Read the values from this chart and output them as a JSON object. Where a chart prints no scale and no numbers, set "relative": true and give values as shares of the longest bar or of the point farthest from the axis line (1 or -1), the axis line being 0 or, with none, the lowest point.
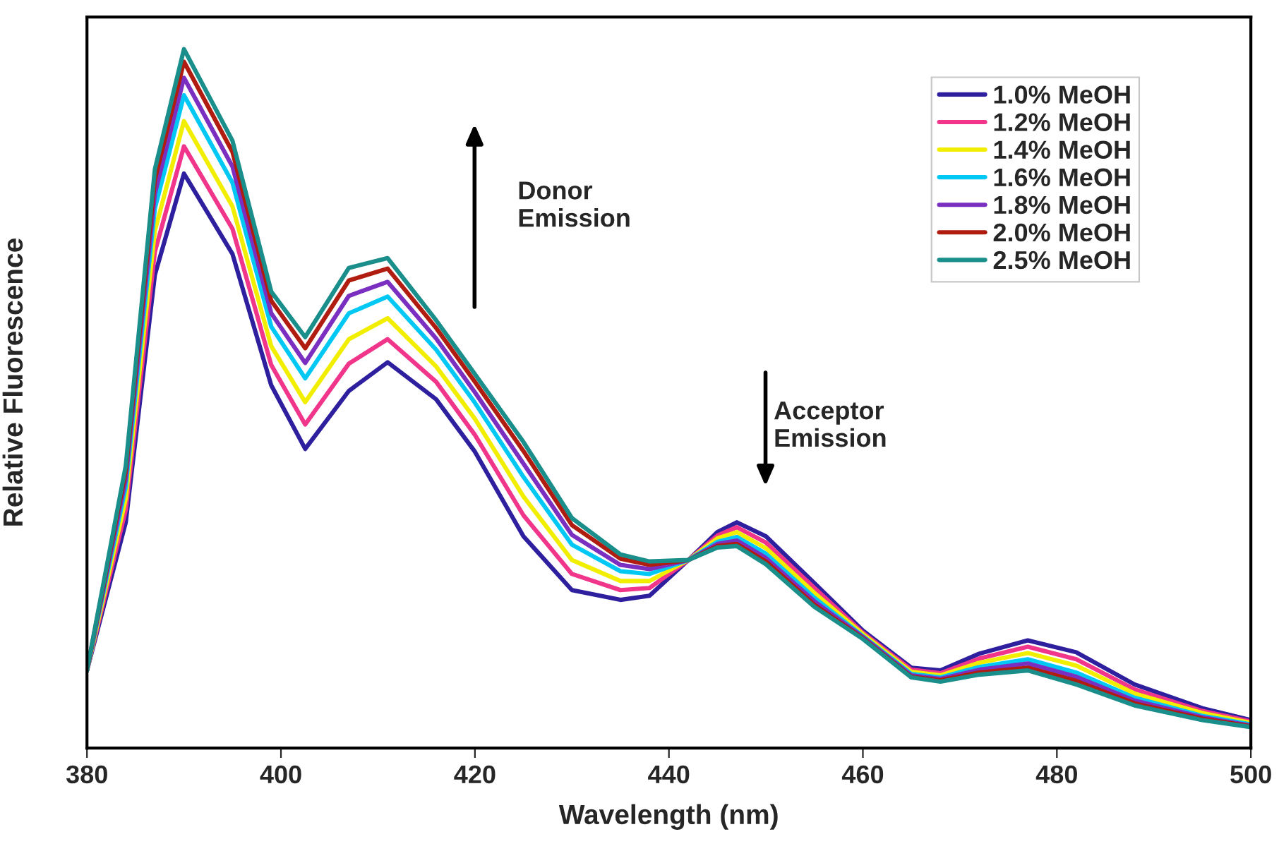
{
  "chart_data": {
    "type": "line",
    "relative": true,
    "xlabel": "Wavelength (nm)",
    "ylabel": "Relative Fluorescence",
    "x": [
      380,
      384,
      387,
      390,
      395,
      399,
      402.5,
      407,
      411,
      416,
      420,
      425,
      430,
      435,
      438,
      442,
      445,
      447,
      450,
      455,
      460,
      465,
      468,
      472,
      477,
      482,
      488,
      495,
      500
    ],
    "xlim": [
      380,
      500
    ],
    "xticks": [
      380,
      400,
      420,
      440,
      460,
      480,
      500
    ],
    "tick_labels": "x",
    "grid": false,
    "legend": "top right",
    "marker": "none",
    "line_style": "solid",
    "annotations": [
      "Donor\nEmission",
      "Acceptor\nEmission"
    ],
    "series": [
      {
        "name": "1.0% MeOH",
        "color": "#2e1f9e",
        "values": [
          0.111,
          0.323,
          0.677,
          0.822,
          0.707,
          0.519,
          0.428,
          0.511,
          0.552,
          0.499,
          0.424,
          0.303,
          0.226,
          0.212,
          0.218,
          0.269,
          0.309,
          0.323,
          0.303,
          0.236,
          0.168,
          0.115,
          0.111,
          0.135,
          0.154,
          0.137,
          0.091,
          0.057,
          0.04
        ]
      },
      {
        "name": "1.2% MeOH",
        "color": "#f0358a",
        "values": [
          0.111,
          0.341,
          0.71,
          0.861,
          0.743,
          0.548,
          0.463,
          0.55,
          0.585,
          0.524,
          0.448,
          0.333,
          0.249,
          0.226,
          0.229,
          0.269,
          0.304,
          0.316,
          0.294,
          0.229,
          0.165,
          0.112,
          0.107,
          0.128,
          0.145,
          0.127,
          0.084,
          0.053,
          0.038
        ]
      },
      {
        "name": "1.4% MeOH",
        "color": "#f2ee00",
        "values": [
          0.111,
          0.357,
          0.74,
          0.897,
          0.775,
          0.575,
          0.495,
          0.585,
          0.615,
          0.546,
          0.471,
          0.36,
          0.269,
          0.239,
          0.239,
          0.269,
          0.3,
          0.309,
          0.286,
          0.222,
          0.163,
          0.109,
          0.104,
          0.122,
          0.136,
          0.118,
          0.078,
          0.05,
          0.036
        ]
      },
      {
        "name": "1.6% MeOH",
        "color": "#00c8f5",
        "values": [
          0.111,
          0.374,
          0.772,
          0.934,
          0.809,
          0.603,
          0.529,
          0.622,
          0.646,
          0.57,
          0.494,
          0.388,
          0.291,
          0.253,
          0.249,
          0.269,
          0.295,
          0.302,
          0.278,
          0.215,
          0.16,
          0.106,
          0.101,
          0.116,
          0.127,
          0.108,
          0.072,
          0.046,
          0.034
        ]
      },
      {
        "name": "1.8% MeOH",
        "color": "#7a2fc0",
        "values": [
          0.111,
          0.385,
          0.793,
          0.959,
          0.832,
          0.622,
          0.551,
          0.647,
          0.667,
          0.586,
          0.509,
          0.407,
          0.305,
          0.262,
          0.256,
          0.269,
          0.292,
          0.297,
          0.272,
          0.21,
          0.159,
          0.104,
          0.099,
          0.112,
          0.121,
          0.102,
          0.068,
          0.044,
          0.032
        ]
      },
      {
        "name": "2.0% MeOH",
        "color": "#b01c10",
        "values": [
          0.111,
          0.396,
          0.813,
          0.982,
          0.853,
          0.64,
          0.572,
          0.669,
          0.686,
          0.601,
          0.524,
          0.425,
          0.319,
          0.271,
          0.262,
          0.269,
          0.289,
          0.292,
          0.267,
          0.205,
          0.157,
          0.102,
          0.097,
          0.108,
          0.115,
          0.096,
          0.064,
          0.042,
          0.031
        ]
      },
      {
        "name": "2.5% MeOH",
        "color": "#1a8e8a",
        "values": [
          0.111,
          0.404,
          0.828,
          1.0,
          0.869,
          0.653,
          0.588,
          0.687,
          0.701,
          0.612,
          0.535,
          0.438,
          0.329,
          0.277,
          0.267,
          0.269,
          0.287,
          0.289,
          0.263,
          0.202,
          0.156,
          0.101,
          0.095,
          0.105,
          0.111,
          0.091,
          0.061,
          0.04,
          0.03
        ]
      }
    ]
  }
}
